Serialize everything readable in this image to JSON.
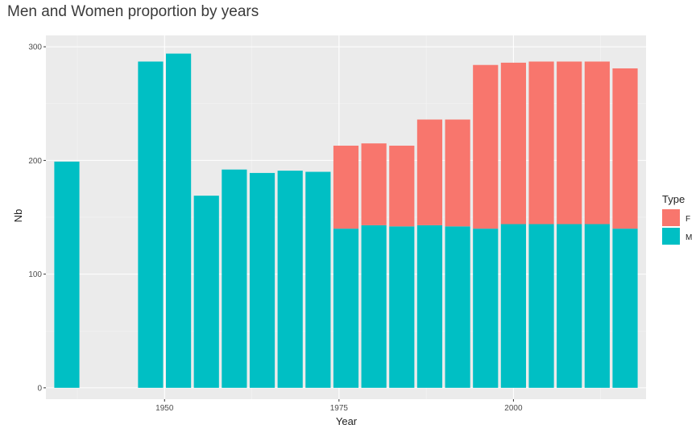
{
  "chart_data": {
    "type": "bar",
    "stacked": true,
    "title": "Men and Women proportion by years",
    "xlabel": "Year",
    "ylabel": "Nb",
    "xlim": [
      1933,
      2019
    ],
    "ylim": [
      -10,
      310
    ],
    "x_ticks": [
      1950,
      1975,
      2000
    ],
    "y_ticks": [
      0,
      100,
      200,
      300
    ],
    "bar_width_years": 3.6,
    "grid": true,
    "legend": {
      "title": "Type",
      "placement": "right"
    },
    "x": [
      1936,
      1948,
      1952,
      1956,
      1960,
      1964,
      1968,
      1972,
      1976,
      1980,
      1984,
      1988,
      1992,
      1996,
      2000,
      2004,
      2008,
      2012,
      2016
    ],
    "series": [
      {
        "name": "M",
        "color": "#00BFC4",
        "values": [
          199,
          287,
          294,
          169,
          192,
          189,
          191,
          190,
          140,
          143,
          142,
          143,
          142,
          140,
          144,
          144,
          144,
          144,
          140
        ]
      },
      {
        "name": "F",
        "color": "#F8766D",
        "values": [
          0,
          0,
          0,
          0,
          0,
          0,
          0,
          0,
          73,
          72,
          71,
          93,
          94,
          144,
          142,
          143,
          143,
          143,
          141
        ]
      }
    ]
  }
}
